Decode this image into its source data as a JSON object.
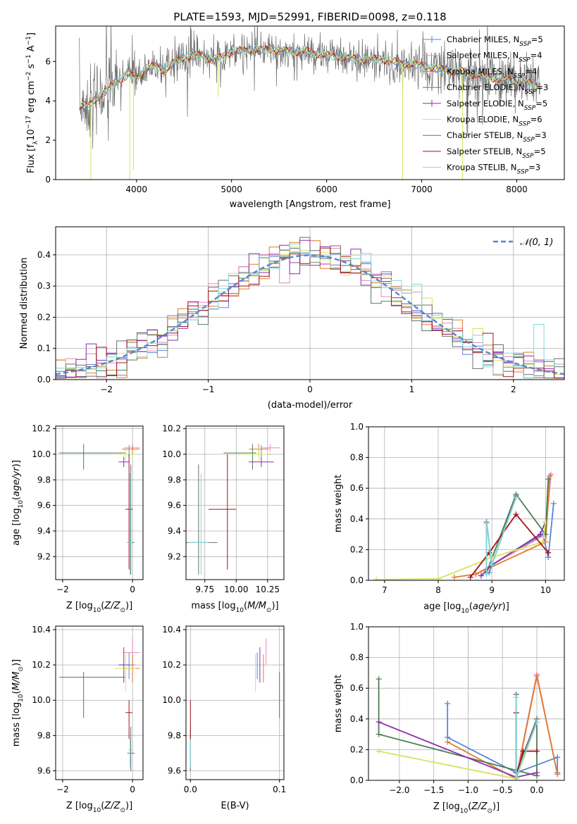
{
  "title": "PLATE=1593, MJD=52991, FIBERID=0098, z=0.118",
  "colors": {
    "Chabrier MILES": "#5b84d8",
    "Salpeter MILES": "#e889b8",
    "Kroupa MILES": "#e07a2a",
    "Chabrier ELODIE": "#4e7d55",
    "Salpeter ELODIE": "#8c2fa8",
    "Kroupa ELODIE": "#d5e35e",
    "Chabrier STELIB": "#6e6e6e",
    "Salpeter STELIB": "#a3141c",
    "Kroupa STELIB": "#7fd8dc"
  },
  "chart_data": [
    {
      "id": "spectrum",
      "type": "line",
      "xlabel": "wavelength [Angstrom, rest frame]",
      "ylabel": "Flux [f_λ10^-17 erg cm^-2 s^-1 A^-1]",
      "xlim": [
        3150,
        8500
      ],
      "ylim": [
        0,
        7.8
      ],
      "xticks": [
        "4000",
        "5000",
        "6000",
        "7000",
        "8000"
      ],
      "yticks": [
        "0",
        "2",
        "4",
        "6"
      ],
      "grid": false,
      "legend_position": "top-right",
      "legend": [
        {
          "name": "Chabrier MILES",
          "nssp": "=5"
        },
        {
          "name": "Salpeter MILES",
          "nssp": "=4"
        },
        {
          "name": "Kroupa MILES",
          "nssp": "=4"
        },
        {
          "name": "Chabrier ELODIE",
          "nssp": "=3"
        },
        {
          "name": "Salpeter ELODIE",
          "nssp": "=5"
        },
        {
          "name": "Kroupa ELODIE",
          "nssp": "=6"
        },
        {
          "name": "Chabrier STELIB",
          "nssp": "=3"
        },
        {
          "name": "Salpeter STELIB",
          "nssp": "=5"
        },
        {
          "name": "Kroupa STELIB",
          "nssp": "=3"
        }
      ],
      "continuum_points": [
        [
          3400,
          3.7
        ],
        [
          3500,
          3.8
        ],
        [
          3600,
          4.2
        ],
        [
          3700,
          4.6
        ],
        [
          3800,
          5.0
        ],
        [
          3900,
          5.3
        ],
        [
          4000,
          5.2
        ],
        [
          4100,
          5.6
        ],
        [
          4200,
          5.8
        ],
        [
          4300,
          5.5
        ],
        [
          4400,
          6.0
        ],
        [
          4500,
          6.2
        ],
        [
          4600,
          6.3
        ],
        [
          4700,
          6.3
        ],
        [
          4800,
          6.1
        ],
        [
          4900,
          6.2
        ],
        [
          5000,
          6.5
        ],
        [
          5200,
          6.6
        ],
        [
          5400,
          6.6
        ],
        [
          5600,
          6.5
        ],
        [
          5800,
          6.5
        ],
        [
          6000,
          6.3
        ],
        [
          6200,
          6.2
        ],
        [
          6400,
          6.1
        ],
        [
          6600,
          6.1
        ],
        [
          6800,
          5.9
        ],
        [
          7000,
          5.8
        ],
        [
          7200,
          5.6
        ],
        [
          7400,
          5.5
        ],
        [
          7600,
          5.3
        ],
        [
          7800,
          5.1
        ],
        [
          8000,
          5.0
        ],
        [
          8250,
          4.8
        ]
      ]
    },
    {
      "id": "residuals",
      "type": "histogram",
      "xlabel": "(data-model)/error",
      "ylabel": "Normed distribution",
      "xlim": [
        -2.5,
        2.5
      ],
      "ylim": [
        0,
        0.49
      ],
      "xticks": [
        "−2",
        "−1",
        "0",
        "1",
        "2"
      ],
      "yticks": [
        "0.0",
        "0.1",
        "0.2",
        "0.3",
        "0.4"
      ],
      "grid": true,
      "legend_position": "top-right",
      "legend_label": "𝒩(0, 1)",
      "bin_width": 0.1
    },
    {
      "id": "age_vs_Z",
      "type": "scatter",
      "xlabel": "Z [log10(Z/Z⊙)]",
      "ylabel": "age [log10(age/yr)]",
      "xlim": [
        -2.2,
        0.3
      ],
      "ylim": [
        9.02,
        10.22
      ],
      "xticks": [
        "−2",
        "0"
      ],
      "yticks": [
        "9.2",
        "9.4",
        "9.6",
        "9.8",
        "10.0",
        "10.2"
      ],
      "grid": true
    },
    {
      "id": "age_vs_mass",
      "type": "scatter",
      "xlabel": "mass [log10(M/M⊙)]",
      "xlim": [
        9.6,
        10.38
      ],
      "ylim": [
        9.02,
        10.22
      ],
      "xticks": [
        "9.75",
        "10.00",
        "10.25"
      ],
      "yticks": [
        "9.2",
        "9.4",
        "9.6",
        "9.8",
        "10.0",
        "10.2"
      ],
      "grid": true
    },
    {
      "id": "weight_vs_age",
      "type": "line",
      "xlabel": "age  [log10(age/yr)]",
      "ylabel": "mass weight",
      "xlim": [
        6.7,
        10.35
      ],
      "ylim": [
        0,
        1.0
      ],
      "xticks": [
        "7",
        "8",
        "9",
        "10"
      ],
      "yticks": [
        "0.0",
        "0.2",
        "0.4",
        "0.6",
        "0.8",
        "1.0"
      ],
      "grid": true
    },
    {
      "id": "mass_vs_Z",
      "type": "scatter",
      "xlabel": "Z [log10(Z/Z⊙)]",
      "ylabel": "mass [log10(M/M⊙)]",
      "xlim": [
        -2.2,
        0.3
      ],
      "ylim": [
        9.55,
        10.42
      ],
      "xticks": [
        "−2",
        "0"
      ],
      "yticks": [
        "9.6",
        "9.8",
        "10.0",
        "10.2",
        "10.4"
      ],
      "grid": true
    },
    {
      "id": "mass_vs_ebv",
      "type": "scatter",
      "xlabel": "E(B-V)",
      "xlim": [
        -0.005,
        0.105
      ],
      "ylim": [
        9.55,
        10.42
      ],
      "xticks": [
        "0.0",
        "0.1"
      ],
      "yticks": [
        "9.6",
        "9.8",
        "10.0",
        "10.2",
        "10.4"
      ],
      "grid": true
    },
    {
      "id": "weight_vs_Z",
      "type": "line",
      "xlabel": "Z [log10(Z/Z⊙)]",
      "ylabel": "mass weight",
      "xlim": [
        -2.45,
        0.4
      ],
      "ylim": [
        0,
        1.0
      ],
      "xticks": [
        "−2.0",
        "−1.5",
        "−1.0",
        "−0.5",
        "0.0"
      ],
      "yticks": [
        "0.0",
        "0.2",
        "0.4",
        "0.6",
        "0.8",
        "1.0"
      ],
      "grid": true
    }
  ],
  "models": [
    {
      "name": "Chabrier MILES",
      "age": 10.0,
      "age_lo": 9.98,
      "age_hi": 10.07,
      "Z": -0.1,
      "Z_lo": -0.35,
      "Z_hi": 0.08,
      "mass": 10.2,
      "m_lo": 10.12,
      "m_hi": 10.27,
      "ebv": 0.075,
      "w_age": [
        [
          8.95,
          0.05
        ],
        [
          9.0,
          0.1
        ],
        [
          9.95,
          0.3
        ],
        [
          10.05,
          0.15
        ],
        [
          10.15,
          0.5
        ]
      ],
      "w_Z": [
        [
          -1.3,
          0.5
        ],
        [
          -1.3,
          0.28
        ],
        [
          -0.3,
          0.05
        ],
        [
          0.3,
          0.15
        ],
        [
          0.3,
          0.05
        ]
      ]
    },
    {
      "name": "Salpeter MILES",
      "age": 10.05,
      "age_lo": 10.02,
      "age_hi": 10.08,
      "Z": 0.0,
      "Z_lo": -0.25,
      "Z_hi": 0.2,
      "mass": 10.27,
      "m_lo": 10.2,
      "m_hi": 10.35,
      "ebv": 0.085,
      "w_age": [
        [
          8.7,
          0.04
        ],
        [
          10.0,
          0.3
        ],
        [
          10.1,
          0.69
        ]
      ],
      "w_Z": [
        [
          -0.3,
          0.02
        ],
        [
          0.0,
          0.69
        ],
        [
          0.3,
          0.04
        ]
      ]
    },
    {
      "name": "Kroupa MILES",
      "age": 10.04,
      "age_lo": 10.0,
      "age_hi": 10.08,
      "Z": 0.0,
      "Z_lo": -0.3,
      "Z_hi": 0.2,
      "mass": 10.18,
      "m_lo": 10.1,
      "m_hi": 10.26,
      "ebv": 0.082,
      "w_age": [
        [
          8.3,
          0.02
        ],
        [
          8.7,
          0.04
        ],
        [
          10.0,
          0.25
        ],
        [
          10.08,
          0.68
        ]
      ],
      "w_Z": [
        [
          -1.3,
          0.25
        ],
        [
          -0.3,
          0.01
        ],
        [
          0.0,
          0.68
        ],
        [
          0.3,
          0.04
        ]
      ]
    },
    {
      "name": "Chabrier ELODIE",
      "age": 10.01,
      "age_lo": 9.88,
      "age_hi": 10.08,
      "Z": -1.4,
      "Z_lo": -2.1,
      "Z_hi": -0.2,
      "mass": 10.13,
      "m_lo": 9.9,
      "m_hi": 10.16,
      "ebv": 0.1,
      "w_age": [
        [
          8.9,
          0.05
        ],
        [
          9.45,
          0.56
        ],
        [
          10.0,
          0.3
        ],
        [
          10.05,
          0.66
        ]
      ],
      "w_Z": [
        [
          -2.3,
          0.66
        ],
        [
          -2.3,
          0.3
        ],
        [
          0.0,
          0.03
        ],
        [
          0.0,
          0.38
        ]
      ]
    },
    {
      "name": "Salpeter ELODIE",
      "age": 9.94,
      "age_lo": 9.9,
      "age_hi": 9.98,
      "Z": -0.25,
      "Z_lo": -0.4,
      "Z_hi": -0.1,
      "mass": 10.2,
      "m_lo": 10.1,
      "m_hi": 10.3,
      "ebv": 0.078,
      "w_age": [
        [
          8.8,
          0.03
        ],
        [
          9.0,
          0.1
        ],
        [
          9.9,
          0.3
        ],
        [
          10.0,
          0.38
        ]
      ],
      "w_Z": [
        [
          -2.3,
          0.38
        ],
        [
          -0.3,
          0.02
        ],
        [
          0.0,
          0.05
        ]
      ]
    },
    {
      "name": "Kroupa ELODIE",
      "age": 10.0,
      "age_lo": 9.95,
      "age_hi": 10.05,
      "Z": -0.2,
      "Z_lo": -0.5,
      "Z_hi": 0.1,
      "mass": 10.18,
      "m_lo": 10.05,
      "m_hi": 10.26,
      "ebv": 0.073,
      "w_age": [
        [
          6.85,
          0.005
        ],
        [
          8.0,
          0.01
        ],
        [
          9.0,
          0.15
        ],
        [
          9.95,
          0.25
        ],
        [
          10.0,
          0.38
        ]
      ],
      "w_Z": [
        [
          -2.3,
          0.19
        ],
        [
          -0.3,
          0.01
        ],
        [
          0.0,
          0.38
        ]
      ]
    },
    {
      "name": "Chabrier STELIB",
      "age": 9.31,
      "age_lo": 9.06,
      "age_hi": 9.92,
      "Z": -0.05,
      "Z_lo": -0.15,
      "Z_hi": 0.05,
      "mass": 9.7,
      "m_lo": 9.6,
      "m_hi": 9.85,
      "ebv": 0.0,
      "w_age": [
        [
          8.9,
          0.05
        ],
        [
          8.9,
          0.38
        ],
        [
          9.0,
          0.1
        ],
        [
          9.45,
          0.55
        ]
      ],
      "w_Z": [
        [
          -0.3,
          0.56
        ],
        [
          -0.3,
          0.05
        ],
        [
          0.0,
          0.4
        ]
      ]
    },
    {
      "name": "Salpeter STELIB",
      "age": 9.57,
      "age_lo": 9.1,
      "age_hi": 10.0,
      "Z": -0.1,
      "Z_lo": -0.2,
      "Z_hi": 0.0,
      "mass": 9.93,
      "m_lo": 9.78,
      "m_hi": 10.0,
      "ebv": 0.0,
      "w_age": [
        [
          8.6,
          0.02
        ],
        [
          8.95,
          0.18
        ],
        [
          9.45,
          0.43
        ],
        [
          10.05,
          0.18
        ]
      ],
      "w_Z": [
        [
          -0.3,
          0.44
        ],
        [
          -0.3,
          0.02
        ],
        [
          -0.2,
          0.19
        ],
        [
          0.0,
          0.19
        ]
      ]
    },
    {
      "name": "Kroupa STELIB",
      "age": 9.31,
      "age_lo": 9.06,
      "age_hi": 9.85,
      "Z": -0.07,
      "Z_lo": -0.12,
      "Z_hi": 0.0,
      "mass": 9.72,
      "m_lo": 9.62,
      "m_hi": 9.78,
      "ebv": 0.0,
      "w_age": [
        [
          8.9,
          0.04
        ],
        [
          8.9,
          0.37
        ],
        [
          9.0,
          0.1
        ],
        [
          9.45,
          0.54
        ]
      ],
      "w_Z": [
        [
          -0.3,
          0.54
        ],
        [
          -0.3,
          0.02
        ],
        [
          0.0,
          0.38
        ]
      ]
    }
  ]
}
